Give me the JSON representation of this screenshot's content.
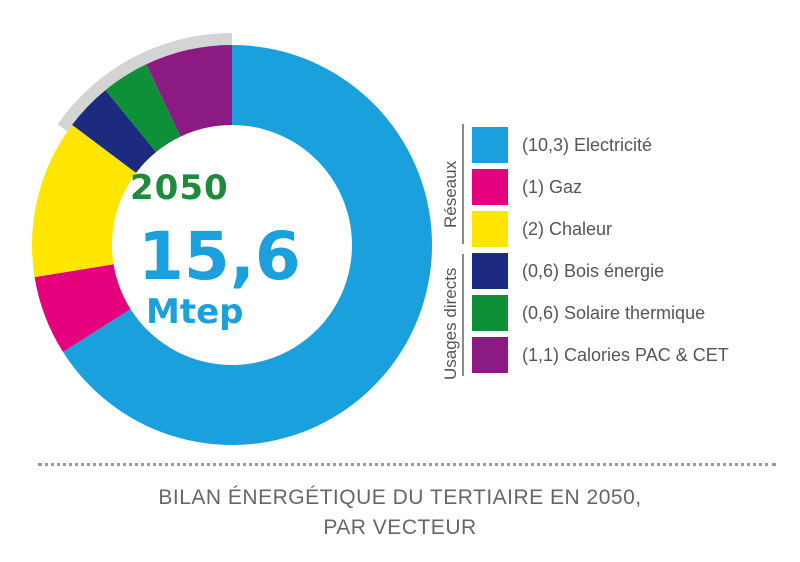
{
  "chart_data": {
    "type": "pie",
    "center": {
      "year": "2050",
      "total": "15,6",
      "unit": "Mtep"
    },
    "slices": [
      {
        "label": "(10,3) Electricité",
        "value": 10.3,
        "color": "#1aa0dc"
      },
      {
        "label": "(1) Gaz",
        "value": 1,
        "color": "#e5007e"
      },
      {
        "label": "(2) Chaleur",
        "value": 2,
        "color": "#ffe600"
      },
      {
        "label": "(0,6) Bois énergie",
        "value": 0.6,
        "color": "#1c2a80"
      },
      {
        "label": "(0,6) Solaire thermique",
        "value": 0.6,
        "color": "#0e9038"
      },
      {
        "label": "(1,1) Calories PAC & CET",
        "value": 1.1,
        "color": "#8b1a82"
      }
    ],
    "groups": [
      {
        "label": "Réseaux",
        "slice_count": 3
      },
      {
        "label": "Usages directs",
        "slice_count": 3
      }
    ],
    "highlight_color": "#d4d4d4"
  },
  "caption": {
    "line1": "BILAN ÉNERGÉTIQUE DU TERTIAIRE EN 2050,",
    "line2": "PAR VECTEUR"
  }
}
